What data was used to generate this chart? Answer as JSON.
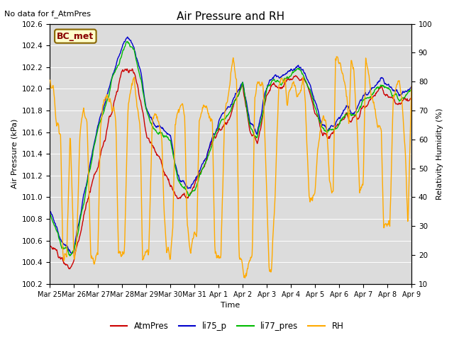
{
  "title": "Air Pressure and RH",
  "top_left_text": "No data for f_AtmPres",
  "annotation_box": "BC_met",
  "xlabel": "Time",
  "ylabel_left": "Air Pressure (kPa)",
  "ylabel_right": "Relativity Humidity (%)",
  "ylim_left": [
    100.2,
    102.6
  ],
  "ylim_right": [
    10,
    100
  ],
  "yticks_left": [
    100.2,
    100.4,
    100.6,
    100.8,
    101.0,
    101.2,
    101.4,
    101.6,
    101.8,
    102.0,
    102.2,
    102.4,
    102.6
  ],
  "yticks_right": [
    10,
    20,
    30,
    40,
    50,
    60,
    70,
    80,
    90,
    100
  ],
  "xtick_labels": [
    "Mar 25",
    "Mar 26",
    "Mar 27",
    "Mar 28",
    "Mar 29",
    "Mar 30",
    "Mar 31",
    "Apr 1",
    "Apr 2",
    "Apr 3",
    "Apr 4",
    "Apr 5",
    "Apr 6",
    "Apr 7",
    "Apr 8",
    "Apr 9"
  ],
  "colors": {
    "AtmPres": "#cc0000",
    "li75_p": "#0000cc",
    "li77_pres": "#00bb00",
    "RH": "#ffaa00"
  },
  "line_width": 1.0,
  "bg_color": "#dcdcdc",
  "legend_items": [
    "AtmPres",
    "li75_p",
    "li77_pres",
    "RH"
  ]
}
